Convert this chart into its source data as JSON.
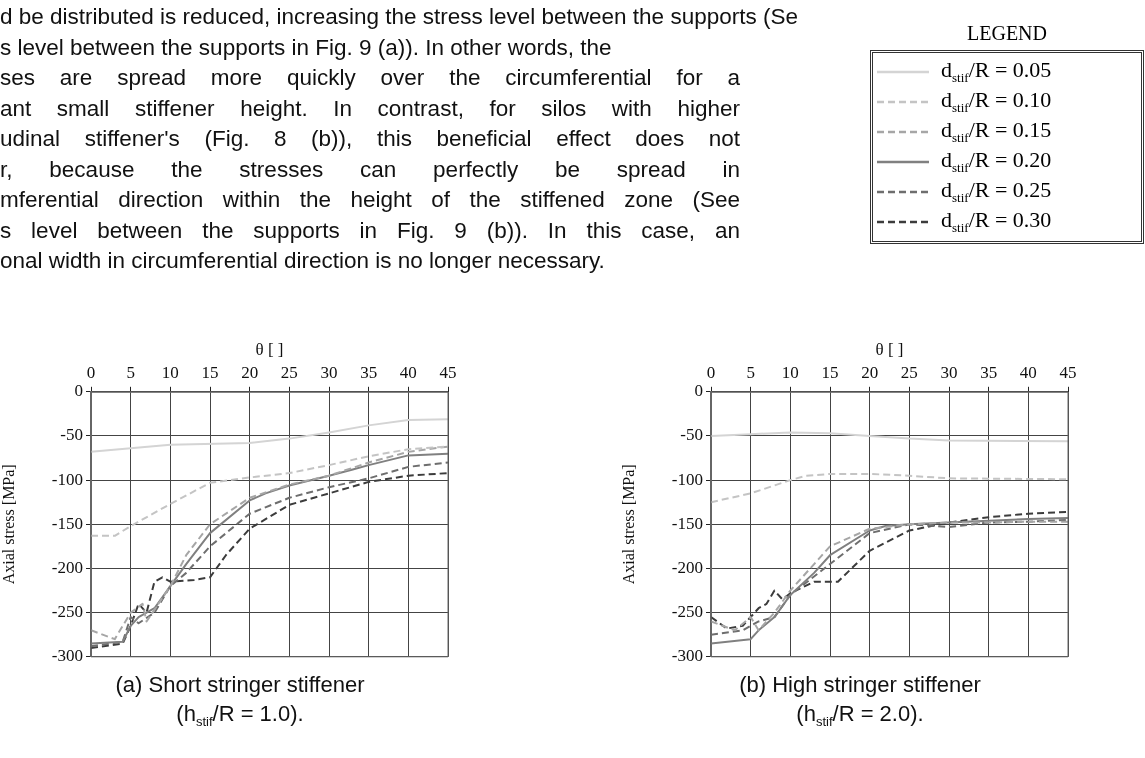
{
  "chart_data": [
    {
      "type": "other",
      "annotations": [
        "d be distributed is reduced, increasing the stress level between the supports (Se",
        "s level between the supports in Fig. 9 (a)). In other words, the",
        "ses are spread more quickly over the circumferential for a",
        "ant small stiffener height. In contrast, for silos with higher",
        "udinal stiffener's (Fig. 8 (b)), this beneficial effect does not",
        "r, because the stresses can perfectly be spread in",
        "mferential direction within the height of the stiffened zone (See",
        "s level between the supports in Fig. 9 (b)). In this case, an",
        "onal width in circumferential direction is no longer necessary."
      ]
    },
    {
      "type": "line",
      "title": "(a) Short stringer stiffener",
      "subtitle": "(h$_{stif}$/R = 1.0).",
      "xlabel": "θ [ ]",
      "ylabel": "Axial stress [MPa]",
      "legend_title": "LEGEND",
      "legend": "top right",
      "grid": true,
      "xlim": [
        0,
        45
      ],
      "xticks": [
        0,
        5,
        10,
        15,
        20,
        25,
        30,
        35,
        40,
        45
      ],
      "ylim": [
        -300,
        0
      ],
      "yticks": [
        0,
        -50,
        -100,
        -150,
        -200,
        -250,
        -300
      ],
      "series": [
        {
          "name": "d$_{stif}$/R = 0.05",
          "color": "#d4d4d4",
          "line_style": "solid",
          "x": [
            0,
            10,
            20,
            25,
            30,
            35,
            40,
            45
          ],
          "values": [
            -68,
            -60,
            -58,
            -53,
            -46,
            -38,
            -32,
            -31
          ]
        },
        {
          "name": "d$_{stif}$/R = 0.10",
          "color": "#c4c4c4",
          "line_style": "dashed",
          "x": [
            0,
            3,
            5,
            10,
            15,
            20,
            25,
            30,
            35,
            40,
            45
          ],
          "values": [
            -163,
            -163,
            -152,
            -127,
            -103,
            -97,
            -92,
            -83,
            -73,
            -65,
            -62
          ]
        },
        {
          "name": "d$_{stif}$/R = 0.15",
          "color": "#a6a6a6",
          "line_style": "dashed",
          "x": [
            0,
            3,
            5,
            6.5,
            7,
            10,
            12,
            15,
            20,
            25,
            30,
            35,
            40,
            45
          ],
          "values": [
            -270,
            -280,
            -250,
            -240,
            -260,
            -220,
            -185,
            -150,
            -120,
            -105,
            -95,
            -80,
            -68,
            -62
          ]
        },
        {
          "name": "d$_{stif}$/R = 0.20",
          "color": "#808080",
          "line_style": "solid",
          "x": [
            0,
            4,
            5,
            6,
            8,
            10,
            12,
            15,
            20,
            22,
            25,
            30,
            33,
            35,
            40,
            45
          ],
          "values": [
            -285,
            -283,
            -265,
            -255,
            -245,
            -220,
            -195,
            -160,
            -123,
            -115,
            -106,
            -95,
            -88,
            -83,
            -72,
            -70
          ]
        },
        {
          "name": "d$_{stif}$/R = 0.25",
          "color": "#6e6e6e",
          "line_style": "dashed",
          "x": [
            0,
            4,
            5,
            6,
            8,
            10,
            12,
            15,
            20,
            25,
            30,
            35,
            40,
            45
          ],
          "values": [
            -288,
            -283,
            -255,
            -262,
            -250,
            -220,
            -205,
            -175,
            -138,
            -120,
            -108,
            -98,
            -85,
            -80
          ]
        },
        {
          "name": "d$_{stif}$/R = 0.30",
          "color": "#3c3c3c",
          "line_style": "dashed",
          "x": [
            0,
            4,
            5,
            6,
            7,
            8,
            9,
            10,
            13,
            15,
            17,
            20,
            25,
            30,
            35,
            40,
            45
          ],
          "values": [
            -290,
            -285,
            -265,
            -240,
            -250,
            -215,
            -210,
            -215,
            -213,
            -210,
            -185,
            -155,
            -128,
            -115,
            -102,
            -95,
            -92
          ]
        }
      ]
    },
    {
      "type": "line",
      "title": "(b) High stringer stiffener",
      "subtitle": "(h$_{stif}$/R = 2.0).",
      "xlabel": "θ [ ]",
      "ylabel": "Axial stress [MPa]",
      "grid": true,
      "xlim": [
        0,
        45
      ],
      "xticks": [
        0,
        5,
        10,
        15,
        20,
        25,
        30,
        35,
        40,
        45
      ],
      "ylim": [
        -300,
        0
      ],
      "yticks": [
        0,
        -50,
        -100,
        -150,
        -200,
        -250,
        -300
      ],
      "series": [
        {
          "color": "#d4d4d4",
          "line_style": "solid",
          "x": [
            0,
            5,
            10,
            15,
            20,
            25,
            30,
            45
          ],
          "values": [
            -50,
            -48,
            -46,
            -47,
            -50,
            -53,
            -55,
            -56
          ]
        },
        {
          "color": "#c4c4c4",
          "line_style": "dashed",
          "x": [
            0,
            5,
            10,
            12,
            15,
            20,
            25,
            30,
            45
          ],
          "values": [
            -125,
            -115,
            -100,
            -95,
            -93,
            -93,
            -95,
            -98,
            -99
          ]
        },
        {
          "color": "#a6a6a6",
          "line_style": "dashed",
          "x": [
            0,
            3,
            5,
            6,
            8,
            10,
            13,
            15,
            20,
            25,
            30,
            35,
            40,
            45
          ],
          "values": [
            -260,
            -270,
            -255,
            -270,
            -250,
            -225,
            -195,
            -175,
            -155,
            -150,
            -148,
            -148,
            -147,
            -147
          ]
        },
        {
          "color": "#808080",
          "line_style": "solid",
          "x": [
            0,
            5,
            6,
            8,
            10,
            13,
            15,
            20,
            22,
            25,
            30,
            35,
            40,
            45
          ],
          "values": [
            -285,
            -280,
            -270,
            -255,
            -230,
            -205,
            -185,
            -157,
            -152,
            -150,
            -148,
            -146,
            -144,
            -143
          ]
        },
        {
          "color": "#6e6e6e",
          "line_style": "dashed",
          "x": [
            0,
            4,
            6,
            8,
            10,
            15,
            20,
            25,
            30,
            35,
            40,
            45
          ],
          "values": [
            -275,
            -270,
            -260,
            -255,
            -230,
            -195,
            -160,
            -150,
            -153,
            -148,
            -147,
            -145
          ]
        },
        {
          "color": "#3c3c3c",
          "line_style": "dashed",
          "x": [
            0,
            2,
            4,
            6,
            7,
            8,
            9,
            10,
            13,
            16,
            20,
            25,
            30,
            35,
            40,
            45
          ],
          "values": [
            -255,
            -268,
            -265,
            -245,
            -240,
            -225,
            -235,
            -228,
            -215,
            -215,
            -180,
            -157,
            -148,
            -142,
            -138,
            -136
          ]
        }
      ]
    }
  ]
}
